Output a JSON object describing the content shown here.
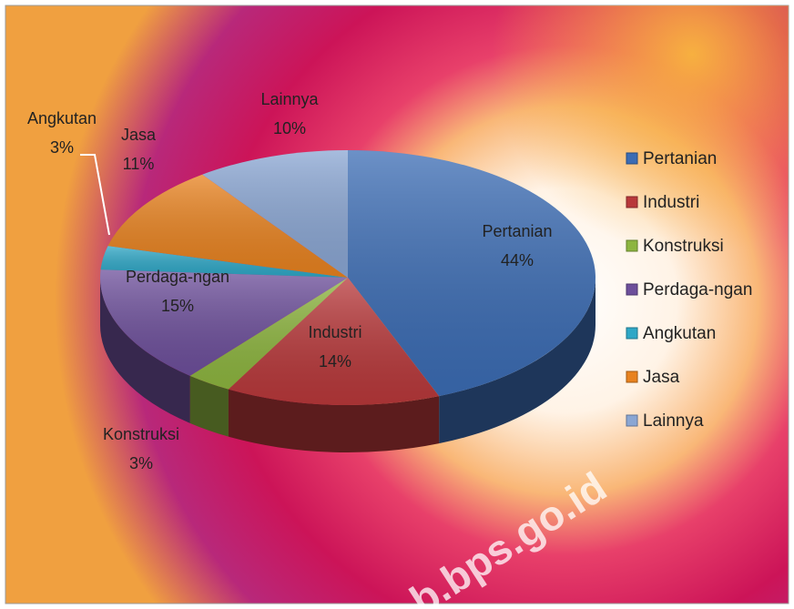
{
  "chart_data": {
    "type": "pie",
    "categories": [
      "Pertanian",
      "Industri",
      "Konstruksi",
      "Perdaga-ngan",
      "Angkutan",
      "Jasa",
      "Lainnya"
    ],
    "values": [
      44,
      14,
      3,
      15,
      3,
      11,
      10
    ],
    "value_labels": [
      "44%",
      "14%",
      "3%",
      "15%",
      "3%",
      "11%",
      "10%"
    ],
    "colors": [
      "#3b6cb4",
      "#b8383a",
      "#8db53f",
      "#6d4f9b",
      "#2ea7c6",
      "#e8821f",
      "#8aa6d3"
    ],
    "legend": "right",
    "watermark": "b.bps.go.id"
  }
}
